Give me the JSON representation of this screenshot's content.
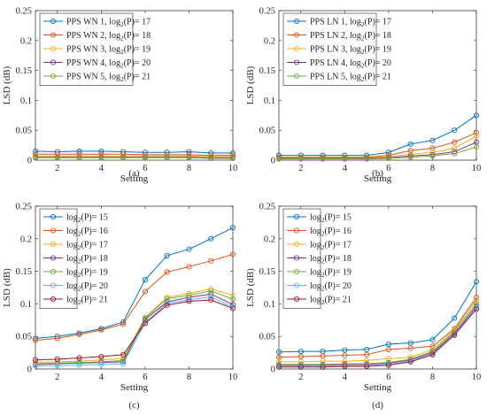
{
  "colors": [
    "#0072BD",
    "#D95319",
    "#EDB120",
    "#7E2F8E",
    "#77AC30",
    "#4DBEEE",
    "#A2142F"
  ],
  "chart_data": [
    {
      "type": "line",
      "caption": "(a)",
      "xlabel": "Setting",
      "ylabel": "LSD (dB)",
      "xlim": [
        1,
        10
      ],
      "ylim": [
        0,
        0.25
      ],
      "xticks": [
        "2",
        "4",
        "6",
        "8",
        "10"
      ],
      "yticks": [
        "0",
        "0.05",
        "0.1",
        "0.15",
        "0.2",
        "0.25"
      ],
      "legend_position": "top-left",
      "x": [
        1,
        2,
        3,
        4,
        5,
        6,
        7,
        8,
        9,
        10
      ],
      "series": [
        {
          "name": "PPS WN 1, log₂(P)= 17",
          "values": [
            0.015,
            0.014,
            0.015,
            0.015,
            0.014,
            0.013,
            0.013,
            0.014,
            0.012,
            0.012
          ]
        },
        {
          "name": "PPS WN 2, log₂(P)= 18",
          "values": [
            0.01,
            0.01,
            0.01,
            0.01,
            0.01,
            0.009,
            0.009,
            0.009,
            0.008,
            0.008
          ]
        },
        {
          "name": "PPS WN 3, log₂(P)= 19",
          "values": [
            0.007,
            0.007,
            0.007,
            0.007,
            0.007,
            0.007,
            0.007,
            0.007,
            0.006,
            0.006
          ]
        },
        {
          "name": "PPS WN 4, log₂(P)= 20",
          "values": [
            0.005,
            0.005,
            0.005,
            0.005,
            0.005,
            0.005,
            0.005,
            0.005,
            0.004,
            0.004
          ]
        },
        {
          "name": "PPS WN 5, log₂(P)= 21",
          "values": [
            0.004,
            0.004,
            0.004,
            0.004,
            0.004,
            0.004,
            0.004,
            0.004,
            0.003,
            0.003
          ]
        }
      ]
    },
    {
      "type": "line",
      "caption": "(b)",
      "xlabel": "Setting",
      "ylabel": "LSD (dB)",
      "xlim": [
        1,
        10
      ],
      "ylim": [
        0,
        0.25
      ],
      "xticks": [
        "2",
        "4",
        "6",
        "8",
        "10"
      ],
      "yticks": [
        "0",
        "0.05",
        "0.1",
        "0.15",
        "0.2",
        "0.25"
      ],
      "legend_position": "top-left",
      "x": [
        1,
        2,
        3,
        4,
        5,
        6,
        7,
        8,
        9,
        10
      ],
      "series": [
        {
          "name": "PPS LN 1, log₂(P)= 17",
          "values": [
            0.008,
            0.008,
            0.008,
            0.008,
            0.008,
            0.013,
            0.027,
            0.033,
            0.05,
            0.075
          ]
        },
        {
          "name": "PPS LN 2, log₂(P)= 18",
          "values": [
            0.005,
            0.005,
            0.005,
            0.005,
            0.005,
            0.008,
            0.016,
            0.02,
            0.03,
            0.046
          ]
        },
        {
          "name": "PPS LN 3, log₂(P)= 19",
          "values": [
            0.004,
            0.004,
            0.004,
            0.004,
            0.004,
            0.006,
            0.01,
            0.013,
            0.02,
            0.04
          ]
        },
        {
          "name": "PPS LN 4, log₂(P)= 20",
          "values": [
            0.003,
            0.003,
            0.003,
            0.003,
            0.003,
            0.004,
            0.007,
            0.009,
            0.014,
            0.03
          ]
        },
        {
          "name": "PPS LN 5, log₂(P)= 21",
          "values": [
            0.002,
            0.002,
            0.002,
            0.002,
            0.002,
            0.003,
            0.005,
            0.007,
            0.011,
            0.022
          ]
        }
      ]
    },
    {
      "type": "line",
      "caption": "(c)",
      "xlabel": "Setting",
      "ylabel": "LSD (dB)",
      "xlim": [
        1,
        10
      ],
      "ylim": [
        0,
        0.25
      ],
      "xticks": [
        "2",
        "4",
        "6",
        "8",
        "10"
      ],
      "yticks": [
        "0",
        "0.05",
        "0.1",
        "0.15",
        "0.2",
        "0.25"
      ],
      "legend_position": "top-left",
      "x": [
        1,
        2,
        3,
        4,
        5,
        6,
        7,
        8,
        9,
        10
      ],
      "series": [
        {
          "name": "log₂(P)= 15",
          "values": [
            0.047,
            0.05,
            0.055,
            0.062,
            0.072,
            0.137,
            0.174,
            0.184,
            0.2,
            0.217
          ]
        },
        {
          "name": "log₂(P)= 16",
          "values": [
            0.044,
            0.047,
            0.053,
            0.06,
            0.069,
            0.119,
            0.149,
            0.157,
            0.166,
            0.176
          ]
        },
        {
          "name": "log₂(P)= 17",
          "values": [
            0.01,
            0.011,
            0.012,
            0.014,
            0.016,
            0.079,
            0.11,
            0.116,
            0.123,
            0.113
          ]
        },
        {
          "name": "log₂(P)= 18",
          "values": [
            0.007,
            0.008,
            0.009,
            0.01,
            0.011,
            0.076,
            0.103,
            0.11,
            0.115,
            0.099
          ]
        },
        {
          "name": "log₂(P)= 19",
          "values": [
            0.008,
            0.009,
            0.01,
            0.011,
            0.013,
            0.078,
            0.108,
            0.113,
            0.12,
            0.107
          ]
        },
        {
          "name": "log₂(P)= 20",
          "values": [
            0.005,
            0.005,
            0.006,
            0.007,
            0.008,
            0.071,
            0.101,
            0.106,
            0.111,
            0.095
          ]
        },
        {
          "name": "log₂(P)= 21",
          "values": [
            0.014,
            0.015,
            0.017,
            0.019,
            0.022,
            0.07,
            0.098,
            0.104,
            0.106,
            0.093
          ]
        }
      ]
    },
    {
      "type": "line",
      "caption": "(d)",
      "xlabel": "Setting",
      "ylabel": "LSD (dB)",
      "xlim": [
        1,
        10
      ],
      "ylim": [
        0,
        0.25
      ],
      "xticks": [
        "2",
        "4",
        "6",
        "8",
        "10"
      ],
      "yticks": [
        "0",
        "0.05",
        "0.1",
        "0.15",
        "0.2",
        "0.25"
      ],
      "legend_position": "top-left",
      "x": [
        1,
        2,
        3,
        4,
        5,
        6,
        7,
        8,
        9,
        10
      ],
      "series": [
        {
          "name": "log₂(P)= 15",
          "values": [
            0.026,
            0.027,
            0.027,
            0.029,
            0.03,
            0.038,
            0.04,
            0.045,
            0.078,
            0.134
          ]
        },
        {
          "name": "log₂(P)= 16",
          "values": [
            0.018,
            0.019,
            0.02,
            0.021,
            0.022,
            0.03,
            0.032,
            0.035,
            0.062,
            0.11
          ]
        },
        {
          "name": "log₂(P)= 17",
          "values": [
            0.011,
            0.011,
            0.012,
            0.012,
            0.013,
            0.016,
            0.018,
            0.03,
            0.06,
            0.106
          ]
        },
        {
          "name": "log₂(P)= 18",
          "values": [
            0.006,
            0.006,
            0.006,
            0.007,
            0.007,
            0.009,
            0.014,
            0.025,
            0.055,
            0.097
          ]
        },
        {
          "name": "log₂(P)= 19",
          "values": [
            0.007,
            0.007,
            0.007,
            0.008,
            0.008,
            0.01,
            0.015,
            0.027,
            0.058,
            0.101
          ]
        },
        {
          "name": "log₂(P)= 20",
          "values": [
            0.004,
            0.004,
            0.004,
            0.005,
            0.005,
            0.007,
            0.012,
            0.023,
            0.053,
            0.094
          ]
        },
        {
          "name": "log₂(P)= 21",
          "values": [
            0.003,
            0.003,
            0.003,
            0.004,
            0.004,
            0.006,
            0.011,
            0.022,
            0.052,
            0.092
          ]
        }
      ]
    }
  ]
}
